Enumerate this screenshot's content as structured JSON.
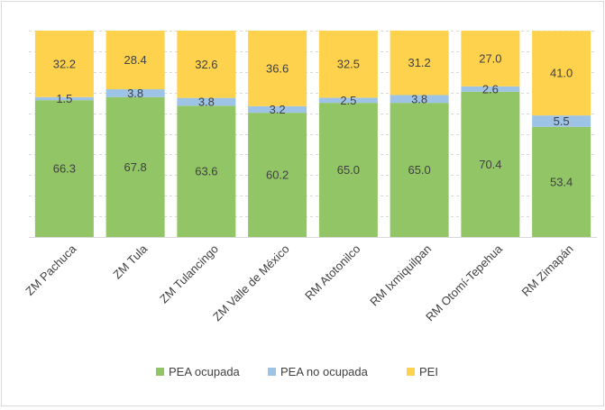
{
  "chart_data": {
    "type": "bar",
    "stacked": true,
    "percent_stacked": true,
    "categories": [
      "ZM Pachuca",
      "ZM Tula",
      "ZM Tulancingo",
      "ZM Valle de México",
      "RM Atotonilco",
      "RM Ixmiquilpan",
      "RM Otomí-Tepehua",
      "RM Zimapán"
    ],
    "series": [
      {
        "name": "PEA ocupada",
        "color": "#92c566",
        "values": [
          66.3,
          67.8,
          63.6,
          60.2,
          65.0,
          65.0,
          70.4,
          53.4
        ],
        "labels": [
          "66.3",
          "67.8",
          "63.6",
          "60.2",
          "65.0",
          "65.0",
          "70.4",
          "53.4"
        ]
      },
      {
        "name": "PEA no ocupada",
        "color": "#9dc3e6",
        "values": [
          1.5,
          3.8,
          3.8,
          3.2,
          2.5,
          3.8,
          2.6,
          5.5
        ],
        "labels": [
          "1.5",
          "3.8",
          "3.8",
          "3.2",
          "2.5",
          "3.8",
          "2.6",
          "5.5"
        ]
      },
      {
        "name": "PEI",
        "color": "#ffd24d",
        "values": [
          32.2,
          28.4,
          32.6,
          36.6,
          32.5,
          31.2,
          27.0,
          41.0
        ],
        "labels": [
          "32.2",
          "28.4",
          "32.6",
          "36.6",
          "32.5",
          "31.2",
          "27.0",
          "41.0"
        ]
      }
    ],
    "ylim": [
      0,
      100
    ],
    "grid": true,
    "legend_position": "bottom",
    "title": "",
    "xlabel": "",
    "ylabel": ""
  }
}
